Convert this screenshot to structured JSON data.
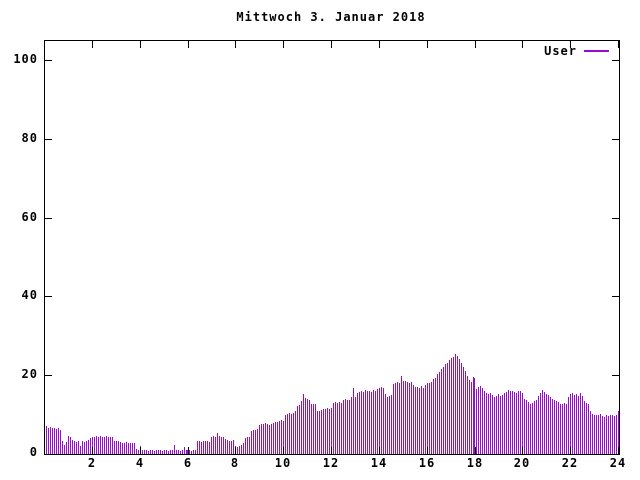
{
  "title": "Mittwoch 3. Januar 2018",
  "legend": {
    "label": "User"
  },
  "colors": {
    "bar": "#9a0bd2",
    "axis": "#000000",
    "background": "#ffffff"
  },
  "chart_data": {
    "type": "bar",
    "style": "impulses",
    "title": "Mittwoch 3. Januar 2018",
    "xlabel": "",
    "ylabel": "",
    "xlim": [
      0,
      24
    ],
    "ylim": [
      0,
      104.8
    ],
    "xticks": [
      2,
      4,
      6,
      8,
      10,
      12,
      14,
      16,
      18,
      20,
      22,
      24
    ],
    "yticks": [
      0,
      20,
      40,
      60,
      80,
      100
    ],
    "grid": false,
    "legend_position": "top-right",
    "x_unit": "hour-of-day",
    "interval_minutes": 5,
    "x_step_hours": 0.0833333,
    "series": [
      {
        "name": "User",
        "color": "#9a0bd2",
        "values": [
          7.0,
          6.6,
          6.8,
          6.5,
          6.7,
          6.4,
          6.6,
          6.2,
          3.3,
          2.3,
          3.0,
          4.6,
          4.4,
          3.6,
          3.2,
          3.0,
          3.3,
          2.0,
          3.2,
          3.1,
          3.3,
          3.6,
          4.0,
          4.3,
          4.4,
          4.5,
          4.4,
          4.5,
          4.3,
          4.4,
          4.5,
          4.3,
          4.4,
          4.3,
          3.4,
          3.2,
          3.3,
          3.1,
          2.9,
          2.8,
          3.0,
          2.8,
          2.9,
          2.8,
          2.7,
          1.2,
          1.0,
          2.0,
          1.0,
          0.9,
          1.0,
          0.8,
          1.0,
          0.9,
          0.8,
          1.0,
          0.9,
          1.0,
          0.8,
          0.9,
          1.0,
          0.8,
          0.9,
          1.0,
          2.3,
          0.9,
          1.0,
          0.8,
          0.9,
          1.7,
          0.9,
          1.0,
          0.9,
          0.8,
          1.0,
          0.9,
          3.2,
          3.3,
          3.1,
          3.4,
          3.3,
          3.2,
          3.1,
          4.2,
          4.6,
          4.3,
          5.3,
          4.5,
          4.4,
          4.2,
          3.8,
          3.6,
          3.4,
          3.3,
          3.5,
          2.1,
          1.9,
          2.0,
          2.2,
          2.8,
          4.0,
          4.3,
          4.4,
          5.8,
          6.2,
          6.1,
          6.3,
          7.4,
          7.6,
          7.5,
          7.8,
          7.6,
          7.4,
          7.7,
          7.9,
          8.2,
          8.0,
          8.4,
          8.6,
          8.3,
          10.0,
          10.2,
          10.4,
          10.1,
          10.3,
          11.0,
          12.2,
          12.5,
          13.5,
          15.2,
          14.2,
          14.0,
          13.8,
          12.8,
          12.6,
          12.7,
          11.0,
          10.9,
          11.2,
          11.4,
          11.3,
          11.6,
          11.5,
          11.7,
          13.0,
          13.2,
          12.9,
          13.1,
          13.0,
          13.7,
          13.9,
          13.6,
          13.8,
          14.5,
          16.7,
          14.4,
          15.6,
          15.8,
          16.0,
          15.7,
          16.2,
          15.9,
          16.1,
          15.8,
          16.3,
          16.0,
          16.5,
          16.8,
          17.0,
          16.7,
          15.2,
          14.5,
          14.8,
          15.0,
          17.7,
          18.0,
          18.3,
          18.1,
          19.8,
          18.5,
          18.4,
          18.2,
          17.9,
          18.3,
          17.5,
          16.9,
          17.0,
          16.7,
          17.3,
          16.8,
          17.6,
          17.9,
          18.0,
          18.3,
          19.0,
          19.4,
          20.3,
          20.8,
          21.5,
          22.0,
          22.8,
          23.2,
          23.8,
          24.3,
          24.6,
          25.3,
          24.8,
          24.2,
          23.2,
          22.2,
          21.0,
          19.8,
          18.8,
          18.2,
          19.5,
          19.3,
          16.5,
          16.9,
          17.2,
          16.8,
          15.9,
          15.5,
          15.2,
          15.6,
          14.9,
          14.4,
          14.7,
          15.1,
          14.6,
          15.0,
          15.4,
          15.8,
          16.2,
          15.9,
          16.1,
          15.7,
          15.4,
          15.9,
          16.0,
          15.6,
          14.0,
          13.8,
          13.2,
          12.6,
          13.0,
          13.4,
          13.6,
          14.7,
          15.5,
          16.2,
          15.8,
          15.2,
          14.9,
          14.5,
          13.9,
          13.6,
          13.4,
          13.3,
          12.8,
          12.6,
          13.0,
          12.7,
          14.4,
          15.3,
          15.5,
          15.0,
          15.2,
          14.8,
          15.4,
          14.6,
          13.4,
          13.0,
          12.6,
          10.8,
          10.2,
          10.0,
          10.0,
          9.8,
          10.1,
          9.7,
          9.5,
          9.9,
          9.6,
          10.0,
          9.8,
          9.7,
          10.0,
          10.8
        ]
      }
    ]
  }
}
